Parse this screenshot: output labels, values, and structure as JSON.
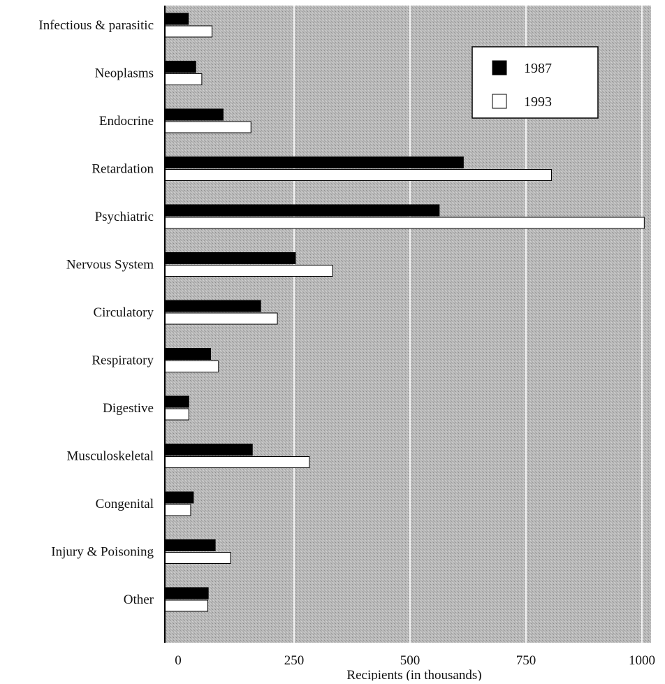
{
  "chart_data": {
    "type": "bar",
    "orientation": "horizontal",
    "categories": [
      "Infectious & parasitic",
      "Neoplasms",
      "Endocrine",
      "Retardation",
      "Psychiatric",
      "Nervous System",
      "Circulatory",
      "Respiratory",
      "Digestive",
      "Musculoskeletal",
      "Congenital",
      "Injury & Poisoning",
      "Other"
    ],
    "series": [
      {
        "name": "1987",
        "values": [
          22,
          38,
          97,
          615,
          563,
          253,
          178,
          70,
          23,
          160,
          33,
          80,
          65
        ],
        "color": "#000000"
      },
      {
        "name": "1993",
        "values": [
          73,
          51,
          157,
          805,
          1005,
          333,
          214,
          87,
          23,
          283,
          27,
          113,
          64
        ],
        "color": "#ffffff"
      }
    ],
    "xlabel": "Recipients (in thousands)",
    "ylabel": "",
    "title": "",
    "xlim": [
      -30,
      1000
    ],
    "xticks": [
      0,
      250,
      500,
      750,
      1000
    ],
    "xtick_labels": [
      "0",
      "250",
      "500",
      "750",
      "1000"
    ],
    "grid": "vertical",
    "legend_position": "top-right",
    "background_color": "#b4b4b4"
  }
}
